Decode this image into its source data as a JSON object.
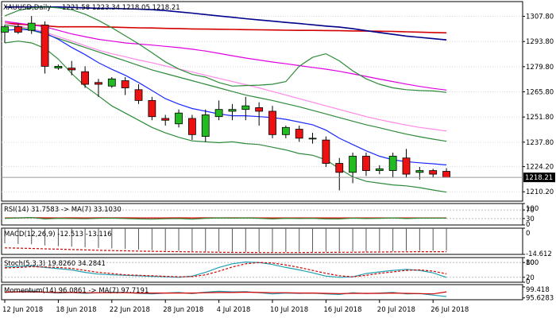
{
  "chart_data": {
    "type": "candlestick",
    "title": "XAUUSD,Daily",
    "ohlc_readout": "1221.58 1223.34 1218.05 1218.21",
    "last_price": "1218.21",
    "price_ylim": [
      1205.0,
      1316.0
    ],
    "price_ticks": [
      "1307.80",
      "1293.80",
      "1279.80",
      "1265.80",
      "1251.80",
      "1237.80",
      "1224.20",
      "1210.20"
    ],
    "x_labels": [
      "12 Jun 2018",
      "18 Jun 2018",
      "22 Jun 2018",
      "28 Jun 2018",
      "4 Jul 2018",
      "10 Jul 2018",
      "16 Jul 2018",
      "20 Jul 2018",
      "26 Jul 2018"
    ],
    "x_label_bars": [
      0,
      4,
      8,
      12,
      16,
      20,
      24,
      28,
      32
    ],
    "candles": [
      {
        "o": 1299,
        "h": 1303,
        "l": 1293,
        "c": 1302
      },
      {
        "o": 1302,
        "h": 1304,
        "l": 1298,
        "c": 1299
      },
      {
        "o": 1300,
        "h": 1308,
        "l": 1298,
        "c": 1304
      },
      {
        "o": 1303,
        "h": 1305,
        "l": 1276,
        "c": 1280
      },
      {
        "o": 1279,
        "h": 1281,
        "l": 1278,
        "c": 1280
      },
      {
        "o": 1279,
        "h": 1283,
        "l": 1275,
        "c": 1278
      },
      {
        "o": 1277,
        "h": 1280,
        "l": 1268,
        "c": 1270
      },
      {
        "o": 1271,
        "h": 1273,
        "l": 1263,
        "c": 1270
      },
      {
        "o": 1269,
        "h": 1274,
        "l": 1268,
        "c": 1273
      },
      {
        "o": 1272,
        "h": 1274,
        "l": 1264,
        "c": 1268
      },
      {
        "o": 1267,
        "h": 1270,
        "l": 1259,
        "c": 1261
      },
      {
        "o": 1261,
        "h": 1263,
        "l": 1250,
        "c": 1252
      },
      {
        "o": 1251,
        "h": 1253,
        "l": 1247,
        "c": 1250
      },
      {
        "o": 1248,
        "h": 1256,
        "l": 1246,
        "c": 1254
      },
      {
        "o": 1251,
        "h": 1253,
        "l": 1239,
        "c": 1242
      },
      {
        "o": 1241,
        "h": 1256,
        "l": 1238,
        "c": 1253
      },
      {
        "o": 1252,
        "h": 1261,
        "l": 1250,
        "c": 1256
      },
      {
        "o": 1255,
        "h": 1259,
        "l": 1250,
        "c": 1256
      },
      {
        "o": 1256,
        "h": 1263,
        "l": 1250,
        "c": 1258
      },
      {
        "o": 1257,
        "h": 1260,
        "l": 1247,
        "c": 1255
      },
      {
        "o": 1255,
        "h": 1258,
        "l": 1240,
        "c": 1242
      },
      {
        "o": 1242,
        "h": 1247,
        "l": 1240,
        "c": 1246
      },
      {
        "o": 1245,
        "h": 1247,
        "l": 1238,
        "c": 1240
      },
      {
        "o": 1240,
        "h": 1243,
        "l": 1237,
        "c": 1240
      },
      {
        "o": 1239,
        "h": 1241,
        "l": 1224,
        "c": 1226
      },
      {
        "o": 1226,
        "h": 1229,
        "l": 1211,
        "c": 1221
      },
      {
        "o": 1221,
        "h": 1232,
        "l": 1215,
        "c": 1230
      },
      {
        "o": 1230,
        "h": 1232,
        "l": 1219,
        "c": 1222
      },
      {
        "o": 1222,
        "h": 1225,
        "l": 1220,
        "c": 1223
      },
      {
        "o": 1222,
        "h": 1232,
        "l": 1218,
        "c": 1230
      },
      {
        "o": 1229,
        "h": 1234,
        "l": 1218,
        "c": 1220
      },
      {
        "o": 1221,
        "h": 1224,
        "l": 1217,
        "c": 1222
      },
      {
        "o": 1222,
        "h": 1223,
        "l": 1218,
        "c": 1220
      },
      {
        "o": 1221.58,
        "h": 1223.34,
        "l": 1218.05,
        "c": 1218.21
      }
    ],
    "overlays": [
      {
        "color": "#d40000",
        "values": [
          1304,
          1303.5,
          1303,
          1302.5,
          1302,
          1302,
          1302,
          1302,
          1301.8,
          1301.6,
          1301.4,
          1301.3,
          1301.1,
          1301,
          1300.8,
          1300.7,
          1300.6,
          1300.5,
          1300.4,
          1300.3,
          1300.2,
          1300.1,
          1300,
          1300,
          1299.9,
          1299.8,
          1299.7,
          1299.6,
          1299.5,
          1299.4,
          1299.2,
          1299.0,
          1298.8,
          1298.6
        ]
      },
      {
        "color": "#00008b",
        "values": [
          1313,
          1313,
          1313,
          1313,
          1313,
          1312.8,
          1312.5,
          1312.3,
          1312.2,
          1312,
          1311.8,
          1311.5,
          1311,
          1310.3,
          1309.6,
          1308.8,
          1308,
          1307.3,
          1306.5,
          1305.8,
          1305.1,
          1304.4,
          1303.8,
          1303.1,
          1302.4,
          1301.8,
          1300.9,
          1299.8,
          1298.8,
          1297.8,
          1296.8,
          1296.1,
          1295.4,
          1294.7
        ]
      },
      {
        "color": "#e000e0",
        "values": [
          1305,
          1304,
          1303,
          1302,
          1300,
          1298,
          1296.5,
          1295,
          1294,
          1293,
          1292.4,
          1291.8,
          1291.1,
          1290.4,
          1289.5,
          1288.5,
          1287.2,
          1285.9,
          1284.6,
          1283.5,
          1282.4,
          1281.4,
          1280.4,
          1279.4,
          1278.4,
          1277.2,
          1275.8,
          1274.4,
          1272.9,
          1271.5,
          1270.1,
          1268.8,
          1267.7,
          1266.8
        ]
      },
      {
        "color": "#ff88e8",
        "values": [
          1304,
          1302.5,
          1301,
          1299,
          1296.5,
          1294,
          1291.5,
          1289,
          1287,
          1285.3,
          1283.5,
          1282,
          1280.2,
          1278.5,
          1276.8,
          1275,
          1273.3,
          1271.5,
          1269.8,
          1268,
          1266,
          1264,
          1262,
          1260,
          1258,
          1256,
          1254,
          1252,
          1250.3,
          1248.8,
          1247.3,
          1246,
          1245,
          1244
        ]
      },
      {
        "color": "#2e8b3a",
        "values": [
          1303,
          1302,
          1300,
          1298,
          1295.5,
          1293,
          1290.5,
          1288,
          1285.5,
          1283,
          1280.5,
          1278,
          1276,
          1274,
          1272,
          1270,
          1268,
          1266,
          1264,
          1262.5,
          1261,
          1259.2,
          1257.5,
          1255.5,
          1253.5,
          1251.5,
          1249.5,
          1247.5,
          1245.8,
          1244,
          1242.3,
          1240.8,
          1239.5,
          1238.3
        ]
      },
      {
        "color": "#1a2aff",
        "values": [
          1300,
          1300.5,
          1300.2,
          1298.5,
          1295,
          1290.5,
          1286.5,
          1282,
          1278.3,
          1275,
          1271,
          1266.5,
          1262,
          1259,
          1256.5,
          1255,
          1253.5,
          1252.5,
          1252.5,
          1252,
          1251.5,
          1250.5,
          1249,
          1247.5,
          1244.5,
          1240,
          1236.5,
          1233,
          1230,
          1228,
          1227,
          1226.3,
          1225.8,
          1225.1
        ]
      },
      {
        "color": "#2e8b3a",
        "values": [
          1308,
          1311,
          1312.5,
          1313,
          1312.5,
          1311.5,
          1309,
          1305.5,
          1301.5,
          1297,
          1292.5,
          1287.5,
          1282.5,
          1278.5,
          1275.5,
          1274,
          1271,
          1269,
          1269.3,
          1269.5,
          1270,
          1271.5,
          1280,
          1285,
          1287,
          1283,
          1277.5,
          1273,
          1270,
          1268,
          1267,
          1266.5,
          1266.3,
          1265.5
        ]
      },
      {
        "color": "#2e8b3a",
        "values": [
          1293,
          1294,
          1293,
          1290,
          1284,
          1276,
          1269,
          1263.5,
          1258,
          1254,
          1250,
          1246,
          1243,
          1240.5,
          1238.5,
          1238,
          1237.5,
          1238,
          1237,
          1236.5,
          1235,
          1233.5,
          1231.5,
          1230.5,
          1228,
          1223,
          1218.5,
          1216,
          1215,
          1214,
          1213.5,
          1212.5,
          1211.2,
          1210
        ]
      }
    ],
    "panels": [
      {
        "label": "RSI(14) 31.7583 -> MA(7) 33.1030",
        "ticks": [
          "100",
          "70",
          "30",
          "0"
        ],
        "ylim": [
          0,
          100
        ],
        "series": [
          {
            "color": "#d40000",
            "values": [
              33,
              33.5,
              33.8,
              33.2,
              33,
              33.3,
              33.1,
              33.2,
              33.3,
              33.4,
              33.1,
              32.9,
              33,
              33.2,
              33.1,
              33.3,
              33.3,
              33.2,
              33.2,
              33.1,
              33,
              33,
              32.9,
              32.9,
              32.8,
              32.8,
              32.9,
              32.9,
              33,
              33.1,
              33.1,
              33.1,
              33.1,
              33.1
            ]
          },
          {
            "color": "#2e8b3a",
            "values": [
              31,
              33,
              35,
              28,
              31,
              30,
              29,
              31,
              32,
              30,
              28,
              27,
              29,
              30,
              27,
              31,
              33,
              32,
              33,
              31,
              28,
              31,
              30,
              31,
              28,
              28,
              32,
              30,
              31,
              33,
              30,
              32,
              32,
              31.8
            ]
          }
        ]
      },
      {
        "label": "MACD(12,26,9) -12.513 -13.116",
        "ticks": [
          "0",
          "-14.612"
        ],
        "ylim": [
          -14.612,
          0
        ],
        "histogram": {
          "color": "#555555",
          "values": [
            -8.4,
            -8.8,
            -9.0,
            -9.6,
            -10.0,
            -10.3,
            -10.7,
            -11.0,
            -11.3,
            -11.6,
            -11.9,
            -12.2,
            -12.5,
            -12.7,
            -12.9,
            -13.0,
            -13.1,
            -13.2,
            -13.2,
            -13.3,
            -13.3,
            -13.3,
            -13.2,
            -13.2,
            -13.1,
            -13.1,
            -13.0,
            -12.9,
            -12.8,
            -12.8,
            -12.7,
            -12.6,
            -12.5,
            -12.513
          ]
        },
        "series": [
          {
            "color": "#d40000",
            "dashed": true,
            "values": [
              -11.0,
              -11.1,
              -11.3,
              -11.5,
              -11.7,
              -11.9,
              -12.1,
              -12.3,
              -12.5,
              -12.6,
              -12.8,
              -12.9,
              -13.0,
              -13.1,
              -13.2,
              -13.3,
              -13.4,
              -13.5,
              -13.5,
              -13.6,
              -13.6,
              -13.6,
              -13.6,
              -13.5,
              -13.5,
              -13.4,
              -13.4,
              -13.3,
              -13.3,
              -13.2,
              -13.2,
              -13.1,
              -13.1,
              -13.116
            ]
          }
        ]
      },
      {
        "label": "Stoch(5,3,3) 19.8260 34.2841",
        "ticks": [
          "100",
          "80",
          "20",
          "0"
        ],
        "ylim": [
          0,
          100
        ],
        "series": [
          {
            "color": "#20a0b0",
            "values": [
              62,
              64,
              66,
              60,
              55,
              50,
              40,
              33,
              30,
              28,
              26,
              24,
              22,
              20,
              25,
              40,
              60,
              75,
              82,
              80,
              72,
              60,
              50,
              38,
              25,
              20,
              22,
              35,
              42,
              48,
              52,
              48,
              38,
              19.8
            ]
          },
          {
            "color": "#d40000",
            "dashed": true,
            "values": [
              58,
              60,
              63,
              62,
              60,
              56,
              48,
              40,
              35,
              30,
              28,
              26,
              24,
              22,
              23,
              30,
              45,
              62,
              75,
              80,
              78,
              70,
              60,
              48,
              36,
              26,
              22,
              28,
              36,
              42,
              48,
              50,
              45,
              34.3
            ]
          }
        ]
      },
      {
        "label": "Momentum(14) 96.0861 -> MA(7) 97.7191",
        "ticks": [
          "99.418",
          "95.6283"
        ],
        "ylim": [
          95.0,
          100.2
        ],
        "series": [
          {
            "color": "#20a0b0",
            "values": [
              97.5,
              97.8,
              98.0,
              97.6,
              97.3,
              97.5,
              97.2,
              97.4,
              97.6,
              97.5,
              97.2,
              97.0,
              97.3,
              97.5,
              97.1,
              97.6,
              97.9,
              97.7,
              97.8,
              97.4,
              97.0,
              97.3,
              97.2,
              97.3,
              97.0,
              96.8,
              97.4,
              97.1,
              97.3,
              97.5,
              97.0,
              97.1,
              96.6,
              96.1
            ]
          },
          {
            "color": "#d40000",
            "values": [
              97.6,
              97.7,
              97.7,
              97.6,
              97.5,
              97.5,
              97.4,
              97.4,
              97.4,
              97.4,
              97.3,
              97.3,
              97.3,
              97.3,
              97.3,
              97.4,
              97.5,
              97.5,
              97.6,
              97.5,
              97.4,
              97.4,
              97.3,
              97.3,
              97.2,
              97.1,
              97.2,
              97.2,
              97.2,
              97.3,
              97.2,
              97.1,
              97.0,
              97.7
            ]
          }
        ]
      }
    ]
  }
}
